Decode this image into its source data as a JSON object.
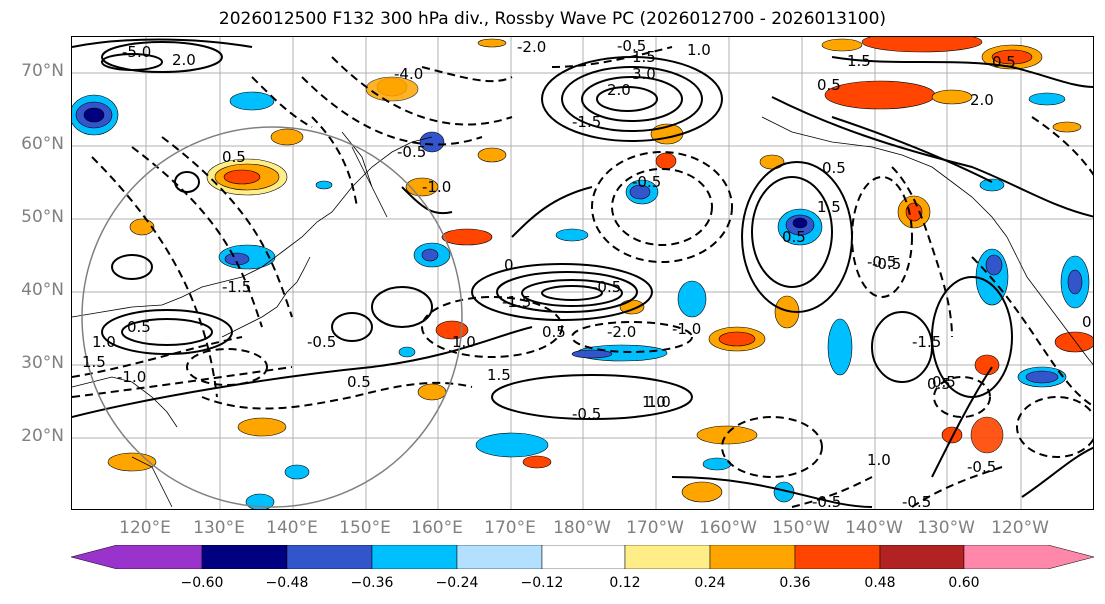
{
  "title": "2026012500 F132 300 hPa div., Rossby Wave PC (2026012700 - 2026013100)",
  "lat_labels": [
    "70°N",
    "60°N",
    "50°N",
    "40°N",
    "30°N",
    "20°N"
  ],
  "lon_labels": [
    "120°E",
    "130°E",
    "140°E",
    "150°E",
    "160°E",
    "170°E",
    "180°W",
    "170°W",
    "160°W",
    "150°W",
    "140°W",
    "130°W",
    "120°W"
  ],
  "contour_labels": [
    "-5.0",
    "2.0",
    "-2.0",
    "-0.5",
    "-4.0",
    "1.0",
    "0.5",
    "3.0",
    "1.5",
    "-1.5",
    "0.5",
    "-0.5",
    "2.0",
    "0.5",
    "-1.0",
    "-0.5",
    "0.5",
    "1.5",
    "-0.5",
    "0.5",
    "-1.5",
    "1.0",
    "-1.0",
    "0.5",
    "1.5",
    "-0.5",
    "-2.0",
    "0.5",
    "0",
    "-0.5",
    "1.0",
    "-1.5",
    "1.5",
    "-1.0",
    "-0.5",
    "0.5",
    "1.0",
    "-1.5",
    "1.0",
    "-0.5",
    "0.5",
    "-0.5",
    "2.0",
    "1.5",
    "0.5",
    "1.0",
    "-0.5",
    "-0.5",
    "0.5"
  ],
  "colorbar": {
    "colors": [
      "#9933cc",
      "#000080",
      "#3355cc",
      "#00bfff",
      "#b3e0ff",
      "#ffffff",
      "#ffee88",
      "#ffa500",
      "#ff4500",
      "#b22222",
      "#ff88aa"
    ],
    "ticks": [
      "−0.60",
      "−0.48",
      "−0.36",
      "−0.24",
      "−0.12",
      "0.12",
      "0.24",
      "0.36",
      "0.48",
      "0.60"
    ]
  },
  "shade_colors": {
    "neg_light": "#b3e0ff",
    "neg_mid": "#00bfff",
    "neg_dark": "#3355cc",
    "neg_darkest": "#000080",
    "pos_light": "#ffee88",
    "pos_mid": "#ffa500",
    "pos_dark": "#ff4500",
    "pos_darkest": "#b22222"
  }
}
